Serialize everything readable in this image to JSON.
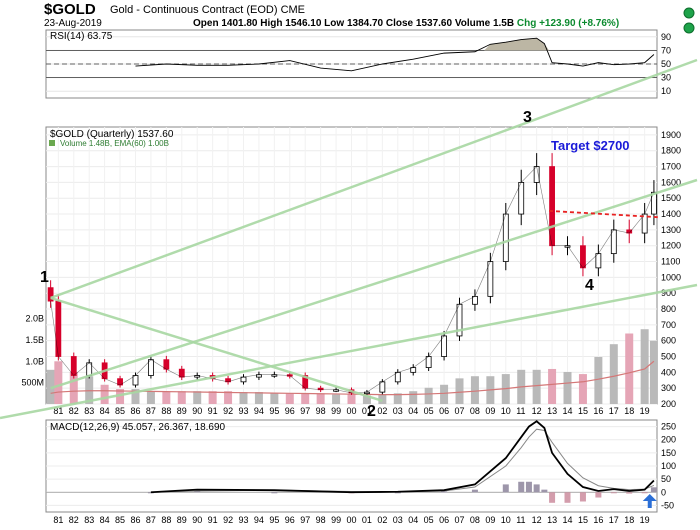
{
  "header": {
    "symbol": "$GOLD",
    "name": "Gold - Continuous Contract (EOD)  CME",
    "date": "23-Aug-2019",
    "ohlc": "Open 1401.80  High 1546.10  Low 1384.70  Close 1537.60  Volume 1.5B",
    "chg": "Chg +123.90 (+8.76%)",
    "chg_arrow": "▲"
  },
  "chart_data": [
    {
      "type": "line",
      "panel": "RSI",
      "label": "RSI(14) 63.75",
      "y_ticks": [
        "90",
        "70",
        "50",
        "30",
        "10"
      ],
      "ylim": [
        0,
        100
      ],
      "reference_levels": [
        70,
        50,
        30
      ],
      "x": [
        1986,
        1988,
        1990,
        1992,
        1994,
        1996,
        1998,
        2000,
        2002,
        2004,
        2006,
        2008,
        2009,
        2010,
        2011,
        2012,
        2012.5,
        2013,
        2014,
        2015,
        2016,
        2017,
        2018,
        2019,
        2019.6
      ],
      "values": [
        47,
        50,
        48,
        48,
        50,
        55,
        44,
        40,
        50,
        57,
        66,
        68,
        79,
        82,
        86,
        88,
        80,
        52,
        50,
        47,
        52,
        49,
        50,
        52,
        64
      ]
    },
    {
      "type": "candlestick",
      "panel": "Price",
      "label": "$GOLD (Quarterly) 1537.60",
      "volume_label": "Volume 1.48B, EMA(60) 1.00B",
      "x_ticks": [
        "81",
        "82",
        "83",
        "84",
        "85",
        "86",
        "87",
        "88",
        "89",
        "90",
        "91",
        "92",
        "93",
        "94",
        "95",
        "96",
        "97",
        "98",
        "99",
        "00",
        "01",
        "02",
        "03",
        "04",
        "05",
        "06",
        "07",
        "08",
        "09",
        "10",
        "11",
        "12",
        "13",
        "14",
        "15",
        "16",
        "17",
        "18",
        "19"
      ],
      "y_ticks": [
        "1900",
        "1800",
        "1700",
        "1600",
        "1500",
        "1400",
        "1300",
        "1200",
        "1100",
        "1000",
        "900",
        "800",
        "700",
        "600",
        "500",
        "400",
        "300",
        "200"
      ],
      "volume_ticks": [
        "2.0B",
        "1.5B",
        "1.0B",
        "500M"
      ],
      "ylim": [
        200,
        1950
      ],
      "x": [
        1980.5,
        1981,
        1982,
        1983,
        1984,
        1985,
        1986,
        1987,
        1988,
        1989,
        1990,
        1991,
        1992,
        1993,
        1994,
        1995,
        1996,
        1997,
        1998,
        1999,
        2000,
        2001,
        2002,
        2003,
        2004,
        2005,
        2006,
        2007,
        2008,
        2009,
        2010,
        2011,
        2012,
        2013,
        2014,
        2015,
        2016,
        2017,
        2018,
        2019,
        2019.6
      ],
      "values": [
        850,
        500,
        380,
        460,
        360,
        320,
        380,
        480,
        420,
        370,
        380,
        360,
        340,
        370,
        385,
        385,
        380,
        300,
        290,
        290,
        270,
        275,
        340,
        400,
        430,
        500,
        630,
        830,
        880,
        1100,
        1400,
        1600,
        1700,
        1200,
        1200,
        1060,
        1150,
        1300,
        1280,
        1400,
        1537.6
      ],
      "volume_m": [
        800,
        1000,
        750,
        650,
        450,
        350,
        350,
        300,
        280,
        300,
        300,
        300,
        300,
        280,
        280,
        250,
        250,
        250,
        250,
        220,
        220,
        200,
        220,
        250,
        300,
        380,
        450,
        600,
        650,
        650,
        700,
        800,
        800,
        820,
        750,
        700,
        1100,
        1400,
        1650,
        1750,
        1480
      ],
      "volume_ema_m": [
        250,
        280,
        300,
        310,
        310,
        305,
        300,
        295,
        290,
        285,
        280,
        275,
        270,
        265,
        260,
        255,
        250,
        245,
        240,
        235,
        230,
        225,
        220,
        220,
        225,
        235,
        250,
        275,
        300,
        330,
        360,
        400,
        430,
        460,
        490,
        520,
        580,
        650,
        730,
        820,
        1000
      ]
    },
    {
      "type": "line",
      "panel": "MACD",
      "label": "MACD(12,26,9) 45.057, 26.367, 18.690",
      "y_ticks": [
        "250",
        "200",
        "150",
        "100",
        "50",
        "0",
        "-50"
      ],
      "ylim": [
        -75,
        275
      ],
      "x": [
        1987,
        1990,
        1995,
        2000,
        2003,
        2006,
        2008,
        2010,
        2011,
        2011.5,
        2012,
        2012.5,
        2013,
        2014,
        2015,
        2016,
        2017,
        2018,
        2019,
        2019.6
      ],
      "series": [
        {
          "values": [
            0,
            10,
            8,
            0,
            2,
            8,
            30,
            130,
            210,
            250,
            270,
            245,
            150,
            70,
            20,
            5,
            12,
            5,
            10,
            45
          ]
        },
        {
          "values": [
            0,
            5,
            8,
            3,
            2,
            5,
            20,
            100,
            170,
            210,
            240,
            235,
            190,
            110,
            55,
            25,
            15,
            10,
            12,
            26
          ]
        }
      ],
      "histogram": [
        0,
        5,
        0,
        -3,
        0,
        3,
        10,
        30,
        40,
        40,
        30,
        10,
        -40,
        -40,
        -35,
        -20,
        -3,
        -5,
        -2,
        19
      ]
    }
  ],
  "annotations": {
    "wave_1": "1",
    "wave_2": "2",
    "wave_3": "3",
    "wave_4": "4",
    "target": "Target $2700"
  },
  "colors": {
    "up_candle": "#000000",
    "down_candle": "#d6002a",
    "trendline": "#a8d8a3",
    "target_text": "#1a1ad8",
    "resistance": "#e82222",
    "volume_up": "#b9b9b9",
    "volume_down": "#e5a5b6",
    "volume_ema": "#d47777",
    "rsi_fill": "#bcb6a4",
    "macd_hist": "#9d96aa",
    "macd_hist_neg": "#d39dac",
    "arrow_blue": "#2c6fd6"
  }
}
